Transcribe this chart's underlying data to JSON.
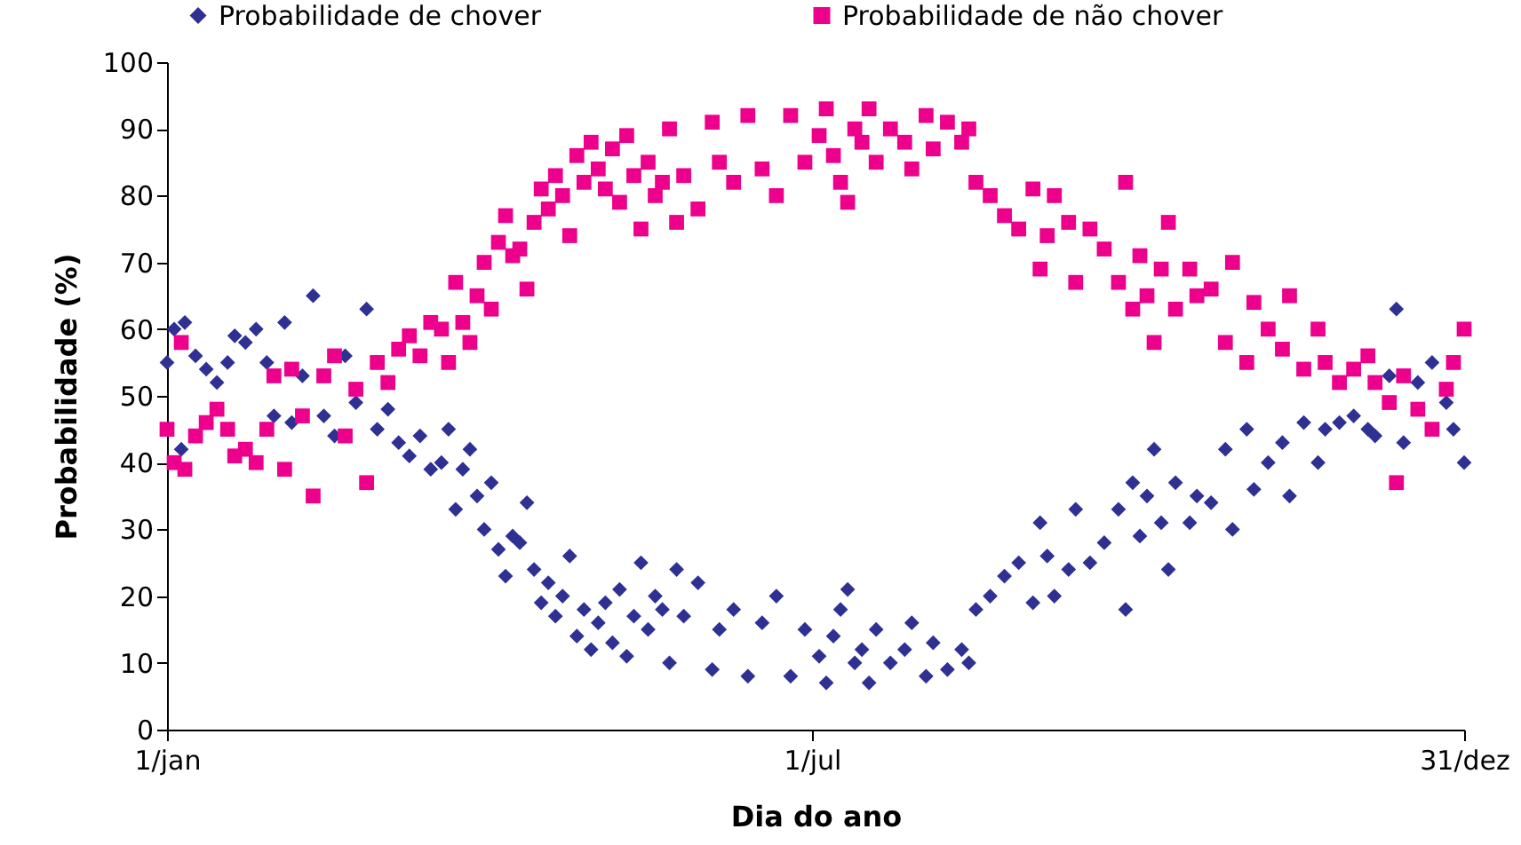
{
  "chart_data": {
    "type": "scatter",
    "xlabel": "Dia do ano",
    "ylabel": "Probabilidade (%)",
    "xlim": [
      "--01-01",
      "--12-31"
    ],
    "xticks": [
      {
        "value": "--01-01",
        "label": "1/jan"
      },
      {
        "value": "--07-01",
        "label": "1/jul"
      },
      {
        "value": "--12-31",
        "label": "31/dez"
      }
    ],
    "ylim": [
      0,
      100
    ],
    "yticks": [
      0,
      10,
      20,
      30,
      40,
      50,
      60,
      70,
      80,
      90,
      100
    ],
    "grid": false,
    "legend": "top",
    "x": [
      "--01-01",
      "--01-03",
      "--01-05",
      "--01-06",
      "--01-09",
      "--01-12",
      "--01-15",
      "--01-18",
      "--01-20",
      "--01-23",
      "--01-26",
      "--01-29",
      "--01-31",
      "--02-03",
      "--02-05",
      "--02-08",
      "--02-11",
      "--02-14",
      "--02-17",
      "--02-20",
      "--02-23",
      "--02-26",
      "--03-01",
      "--03-04",
      "--03-07",
      "--03-10",
      "--03-13",
      "--03-16",
      "--03-19",
      "--03-21",
      "--03-23",
      "--03-25",
      "--03-27",
      "--03-29",
      "--03-31",
      "--04-02",
      "--04-04",
      "--04-06",
      "--04-08",
      "--04-10",
      "--04-12",
      "--04-14",
      "--04-16",
      "--04-18",
      "--04-20",
      "--04-22",
      "--04-24",
      "--04-26",
      "--04-28",
      "--04-30",
      "--05-02",
      "--05-04",
      "--05-06",
      "--05-08",
      "--05-10",
      "--05-12",
      "--05-14",
      "--05-16",
      "--05-18",
      "--05-20",
      "--05-22",
      "--05-24",
      "--05-26",
      "--05-30",
      "--06-03",
      "--06-05",
      "--06-09",
      "--06-13",
      "--06-17",
      "--06-21",
      "--06-25",
      "--06-29",
      "--07-03",
      "--07-05",
      "--07-07",
      "--07-09",
      "--07-11",
      "--07-13",
      "--07-15",
      "--07-17",
      "--07-19",
      "--07-23",
      "--07-27",
      "--07-29",
      "--08-02",
      "--08-04",
      "--08-08",
      "--08-12",
      "--08-14",
      "--08-16",
      "--08-20",
      "--08-24",
      "--08-28",
      "--09-01",
      "--09-03",
      "--09-05",
      "--09-07",
      "--09-11",
      "--09-13",
      "--09-17",
      "--09-21",
      "--09-25",
      "--09-27",
      "--09-29",
      "--10-01",
      "--10-03",
      "--10-05",
      "--10-07",
      "--10-09",
      "--10-11",
      "--10-15",
      "--10-17",
      "--10-21",
      "--10-25",
      "--10-27",
      "--10-31",
      "--11-02",
      "--11-06",
      "--11-10",
      "--11-12",
      "--11-16",
      "--11-20",
      "--11-22",
      "--11-26",
      "--11-30",
      "--12-04",
      "--12-06",
      "--12-10",
      "--12-12",
      "--12-14",
      "--12-18",
      "--12-22",
      "--12-26",
      "--12-28",
      "--12-31"
    ],
    "series": [
      {
        "name": "Probabilidade de chover",
        "color": "#2e3192",
        "marker": "diamond",
        "values": [
          55,
          60,
          42,
          61,
          56,
          54,
          52,
          55,
          59,
          58,
          60,
          55,
          47,
          61,
          46,
          53,
          65,
          47,
          44,
          56,
          49,
          63,
          45,
          48,
          43,
          41,
          44,
          39,
          40,
          45,
          33,
          39,
          42,
          35,
          30,
          37,
          27,
          23,
          29,
          28,
          34,
          24,
          19,
          22,
          17,
          20,
          26,
          14,
          18,
          12,
          16,
          19,
          13,
          21,
          11,
          17,
          25,
          15,
          20,
          18,
          10,
          24,
          17,
          22,
          9,
          15,
          18,
          8,
          16,
          20,
          8,
          15,
          11,
          7,
          14,
          18,
          21,
          10,
          12,
          7,
          15,
          10,
          12,
          16,
          8,
          13,
          9,
          12,
          10,
          18,
          20,
          23,
          25,
          19,
          31,
          26,
          20,
          24,
          33,
          25,
          28,
          33,
          18,
          37,
          29,
          35,
          42,
          31,
          24,
          37,
          31,
          35,
          34,
          42,
          30,
          45,
          36,
          40,
          43,
          35,
          46,
          40,
          45,
          46,
          47,
          45,
          44,
          53,
          63,
          43,
          52,
          55,
          49,
          45,
          40
        ]
      },
      {
        "name": "Probabilidade de não chover",
        "color": "#ec008c",
        "marker": "square",
        "values": [
          45,
          40,
          58,
          39,
          44,
          46,
          48,
          45,
          41,
          42,
          40,
          45,
          53,
          39,
          54,
          47,
          35,
          53,
          56,
          44,
          51,
          37,
          55,
          52,
          57,
          59,
          56,
          61,
          60,
          55,
          67,
          61,
          58,
          65,
          70,
          63,
          73,
          77,
          71,
          72,
          66,
          76,
          81,
          78,
          83,
          80,
          74,
          86,
          82,
          88,
          84,
          81,
          87,
          79,
          89,
          83,
          75,
          85,
          80,
          82,
          90,
          76,
          83,
          78,
          91,
          85,
          82,
          92,
          84,
          80,
          92,
          85,
          89,
          93,
          86,
          82,
          79,
          90,
          88,
          93,
          85,
          90,
          88,
          84,
          92,
          87,
          91,
          88,
          90,
          82,
          80,
          77,
          75,
          81,
          69,
          74,
          80,
          76,
          67,
          75,
          72,
          67,
          82,
          63,
          71,
          65,
          58,
          69,
          76,
          63,
          69,
          65,
          66,
          58,
          70,
          55,
          64,
          60,
          57,
          65,
          54,
          60,
          55,
          52,
          54,
          56,
          52,
          49,
          37,
          53,
          48,
          45,
          51,
          55,
          60
        ]
      }
    ]
  }
}
